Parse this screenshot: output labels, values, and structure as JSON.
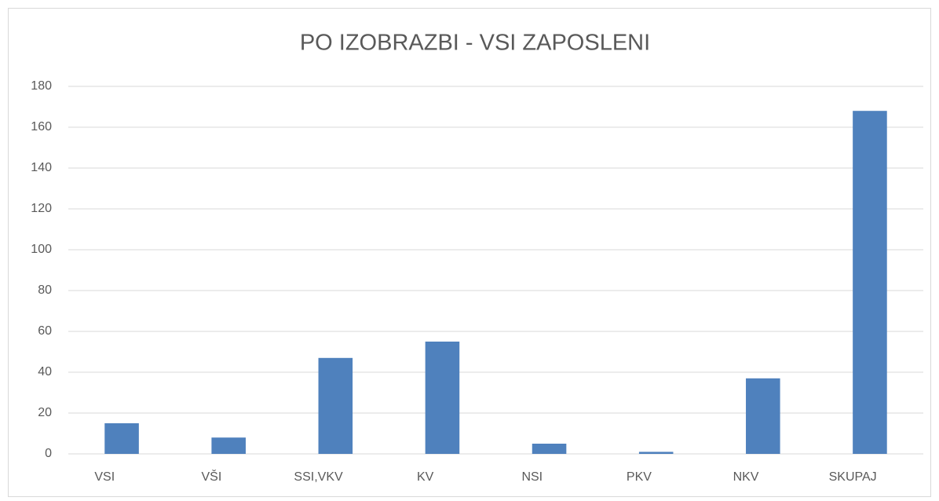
{
  "chart_data": {
    "type": "bar",
    "title": "PO IZOBRAZBI - VSI ZAPOSLENI",
    "categories": [
      "VSI",
      "VŠI",
      "SSI,VKV",
      "KV",
      "NSI",
      "PKV",
      "NKV",
      "SKUPAJ"
    ],
    "values": [
      15,
      8,
      47,
      55,
      5,
      1,
      37,
      168
    ],
    "color": "#4f81bd",
    "ylim": [
      0,
      180
    ],
    "yticks": [
      0,
      20,
      40,
      60,
      80,
      100,
      120,
      140,
      160,
      180
    ],
    "grid": true
  }
}
